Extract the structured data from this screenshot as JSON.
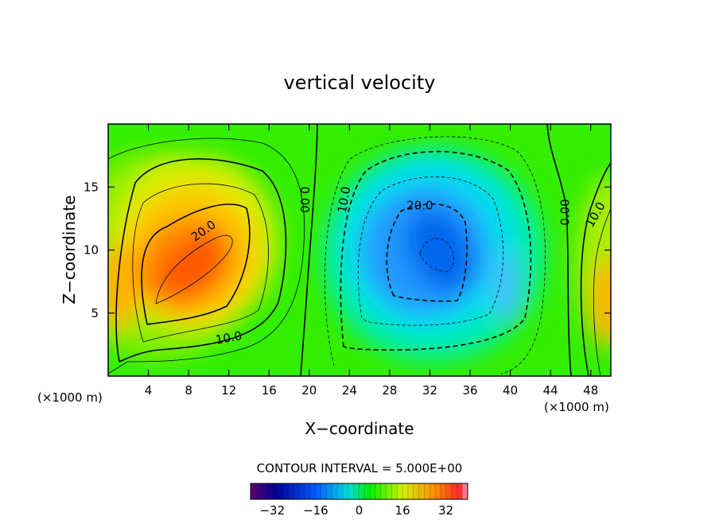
{
  "chart_data": {
    "type": "heatmap",
    "title": "vertical velocity",
    "xlabel": "X−coordinate",
    "ylabel": "Z−coordinate",
    "x_unit_left": "(×1000 m)",
    "x_unit_right": "(×1000 m)",
    "xlim": [
      0,
      50
    ],
    "ylim": [
      0,
      20
    ],
    "xticks": [
      4,
      8,
      12,
      16,
      20,
      24,
      28,
      32,
      36,
      40,
      44,
      48
    ],
    "xtick_labels": [
      "4",
      "8",
      "12",
      "16",
      "20",
      "24",
      "28",
      "32",
      "36",
      "40",
      "44",
      "48"
    ],
    "yticks": [
      5,
      10,
      15
    ],
    "ytick_labels": [
      "5",
      "10",
      "15"
    ],
    "contour_interval_text": "CONTOUR INTERVAL = 5.000E+00",
    "colorbar": {
      "range": [
        -40,
        40
      ],
      "ticks": [
        -32,
        -16,
        0,
        16,
        32
      ],
      "tick_labels": [
        "−32",
        "−16",
        "0",
        "16",
        "32"
      ]
    },
    "contour_labels": [
      {
        "text": "20.0",
        "x": 9.5,
        "y": 11.5
      },
      {
        "text": "10.0",
        "x": 12,
        "y": 3
      },
      {
        "text": "0.00",
        "x": 19.5,
        "y": 14
      },
      {
        "text": "10.0",
        "x": 23.5,
        "y": 14
      },
      {
        "text": "20.0",
        "x": 31,
        "y": 13.5
      },
      {
        "text": "0.00",
        "x": 45.5,
        "y": 13
      },
      {
        "text": "10.0",
        "x": 48.5,
        "y": 12.8
      }
    ],
    "features": [
      {
        "name": "updraft",
        "x": 8.5,
        "z": 8.5,
        "peak": 35
      },
      {
        "name": "downdraft",
        "x": 33,
        "z": 10,
        "peak": -25
      },
      {
        "name": "updraft-right",
        "x": 50,
        "z": 6,
        "peak": 25
      }
    ]
  }
}
